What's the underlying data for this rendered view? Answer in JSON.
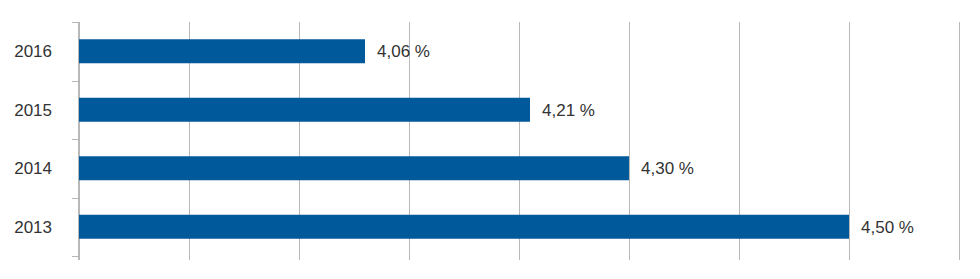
{
  "chart_data": {
    "type": "bar",
    "orientation": "horizontal",
    "categories": [
      "2016",
      "2015",
      "2014",
      "2013"
    ],
    "values": [
      4.06,
      4.21,
      4.3,
      4.5
    ],
    "value_labels": [
      "4,06 %",
      "4,21 %",
      "4,30 %",
      "4,50 %"
    ],
    "color": "#00599b",
    "xlim": [
      3.8,
      4.6
    ],
    "xticks": [
      3.8,
      3.9,
      4.0,
      4.1,
      4.2,
      4.3,
      4.4,
      4.5,
      4.6
    ],
    "grid": true,
    "data_labels": true,
    "tick_labels": "y"
  }
}
